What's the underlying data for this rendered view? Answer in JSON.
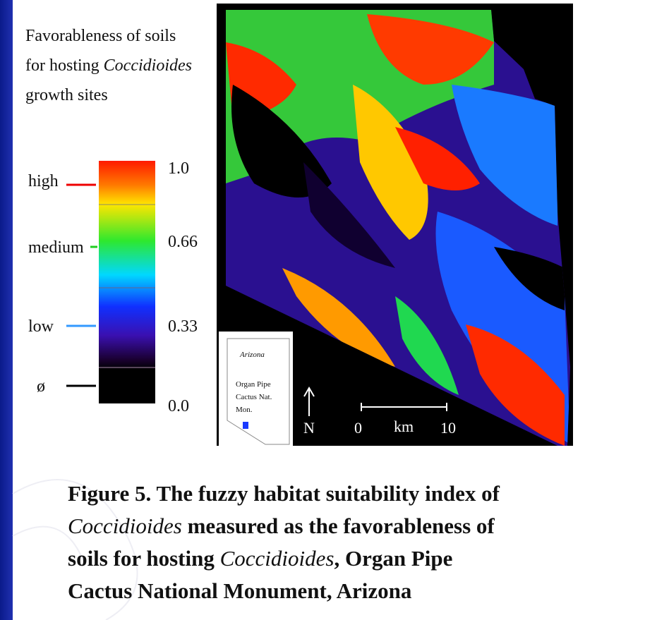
{
  "legend": {
    "title_lines": [
      [
        "Favorableness of soils"
      ],
      [
        "for hosting ",
        "Coccidioides"
      ],
      [
        "growth sites"
      ]
    ],
    "classes": [
      "high",
      "medium",
      "low",
      "ø"
    ],
    "values": [
      "1.0",
      "0.66",
      "0.33",
      "0.0"
    ]
  },
  "inset": {
    "title": "Arizona",
    "label_lines": [
      "Organ Pipe",
      "Cactus Nat.",
      "Mon."
    ]
  },
  "map": {
    "north": "N",
    "scale_start": "0",
    "scale_unit": "km",
    "scale_end": "10"
  },
  "caption": {
    "lines": [
      [
        "Figure 5. The fuzzy habitat suitability index of"
      ],
      [
        "Coccidioides",
        " measured as the favorableness of"
      ],
      [
        "soils for hosting ",
        "Coccidioides",
        ", Organ Pipe"
      ],
      [
        "Cactus National Monument, Arizona"
      ]
    ]
  }
}
